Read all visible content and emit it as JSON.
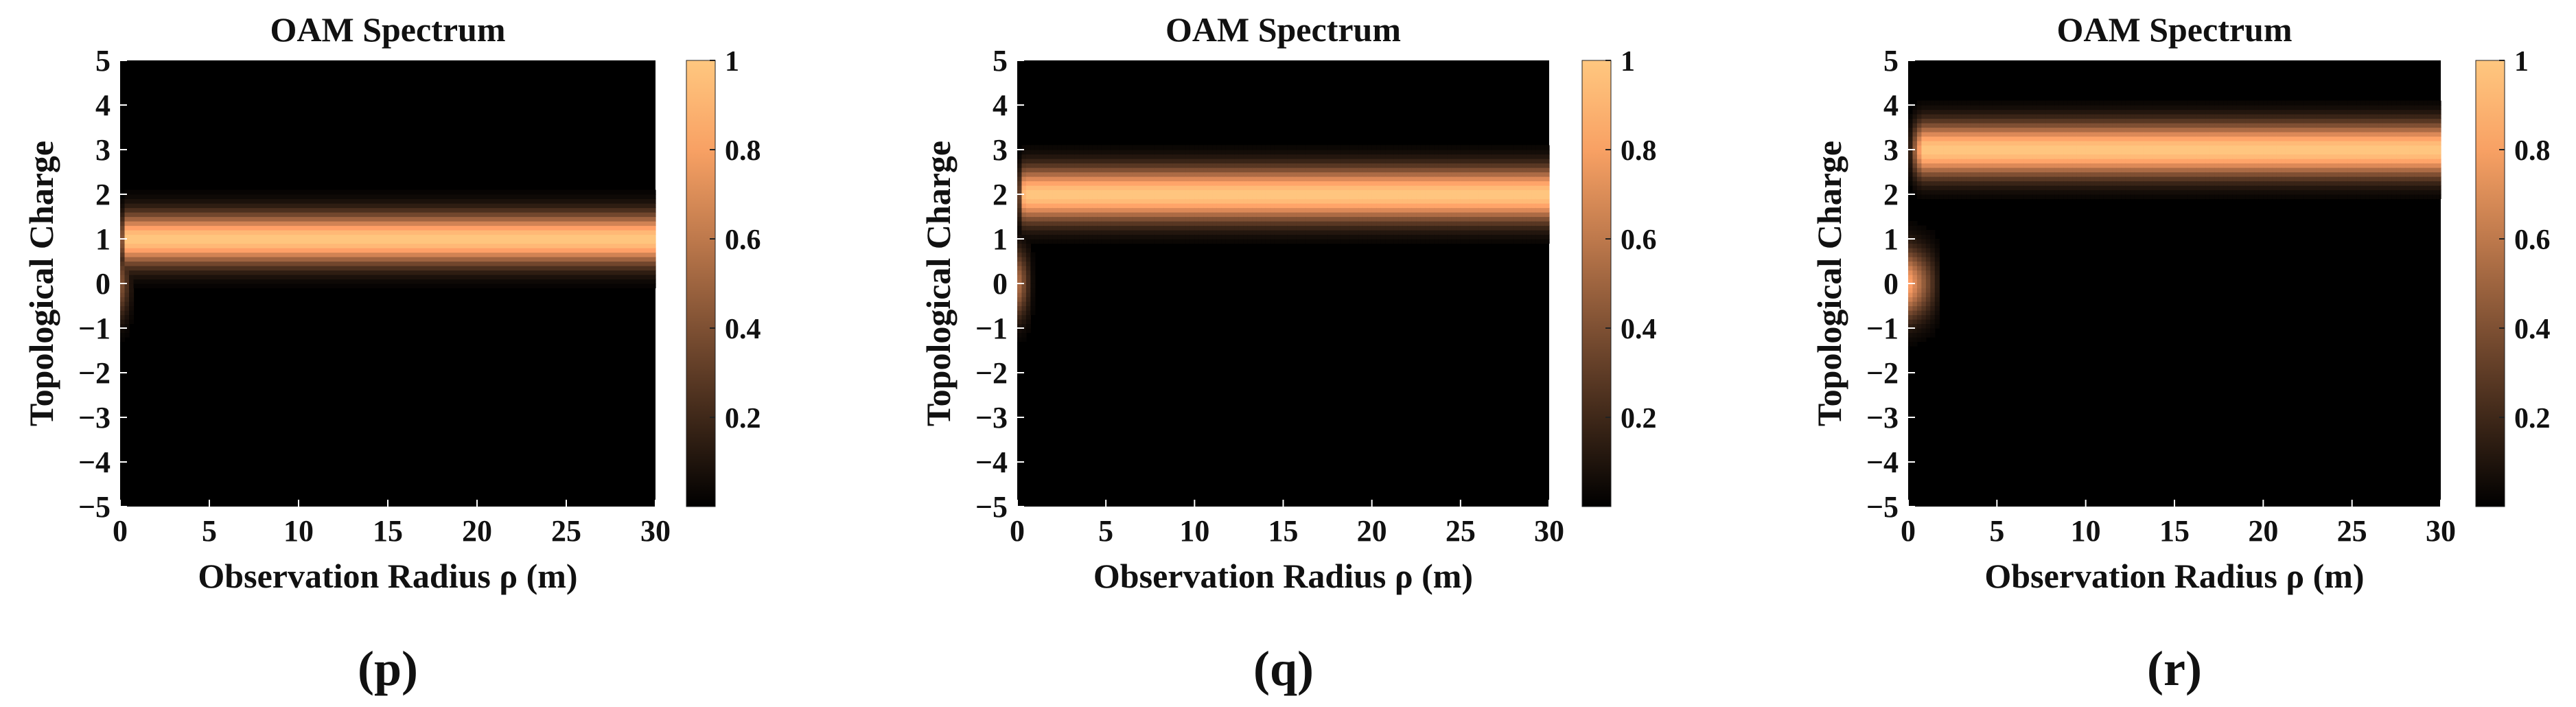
{
  "figure": {
    "panels": [
      {
        "panel_label": "(p)",
        "chart_data": {
          "type": "heatmap",
          "title": "OAM Spectrum",
          "xlabel": "Observation Radius ρ (m)",
          "ylabel": "Topological Charge",
          "xlim": [
            0,
            30
          ],
          "ylim": [
            -5,
            5
          ],
          "xticks": [
            "0",
            "5",
            "10",
            "15",
            "20",
            "25",
            "30"
          ],
          "yticks": [
            "−5",
            "−4",
            "−3",
            "−2",
            "−1",
            "0",
            "1",
            "2",
            "3",
            "4",
            "5"
          ],
          "colorbar": {
            "range": [
              0,
              1
            ],
            "ticks": [
              "0.2",
              "0.4",
              "0.6",
              "0.8",
              "1"
            ]
          },
          "colormap": "copper",
          "dominant_charge": 1,
          "band_start_rho": 0.3,
          "band_halfwidth_charge": 0.8,
          "band_intensity": 1.0,
          "near_origin": {
            "charge": 0,
            "rho_extent": 0.5,
            "intensity": 0.45
          }
        }
      },
      {
        "panel_label": "(q)",
        "chart_data": {
          "type": "heatmap",
          "title": "OAM Spectrum",
          "xlabel": "Observation Radius ρ (m)",
          "ylabel": "Topological Charge",
          "xlim": [
            0,
            30
          ],
          "ylim": [
            -5,
            5
          ],
          "xticks": [
            "0",
            "5",
            "10",
            "15",
            "20",
            "25",
            "30"
          ],
          "yticks": [
            "−5",
            "−4",
            "−3",
            "−2",
            "−1",
            "0",
            "1",
            "2",
            "3",
            "4",
            "5"
          ],
          "colorbar": {
            "range": [
              0,
              1
            ],
            "ticks": [
              "0.2",
              "0.4",
              "0.6",
              "0.8",
              "1"
            ]
          },
          "colormap": "copper",
          "dominant_charge": 2,
          "band_start_rho": 0.4,
          "band_halfwidth_charge": 0.85,
          "band_intensity": 1.0,
          "near_origin": {
            "charge": 0,
            "rho_extent": 0.6,
            "intensity": 0.6
          }
        }
      },
      {
        "panel_label": "(r)",
        "chart_data": {
          "type": "heatmap",
          "title": "OAM Spectrum",
          "xlabel": "Observation Radius ρ (m)",
          "ylabel": "Topological Charge",
          "xlim": [
            0,
            30
          ],
          "ylim": [
            -5,
            5
          ],
          "xticks": [
            "0",
            "5",
            "10",
            "15",
            "20",
            "25",
            "30"
          ],
          "yticks": [
            "−5",
            "−4",
            "−3",
            "−2",
            "−1",
            "0",
            "1",
            "2",
            "3",
            "4",
            "5"
          ],
          "colorbar": {
            "range": [
              0,
              1
            ],
            "ticks": [
              "0.2",
              "0.4",
              "0.6",
              "0.8",
              "1"
            ]
          },
          "colormap": "copper",
          "dominant_charge": 3,
          "band_start_rho": 0.8,
          "band_halfwidth_charge": 0.85,
          "band_intensity": 1.0,
          "near_origin": {
            "charge": 0,
            "rho_extent": 1.2,
            "intensity": 0.85
          }
        }
      }
    ]
  }
}
